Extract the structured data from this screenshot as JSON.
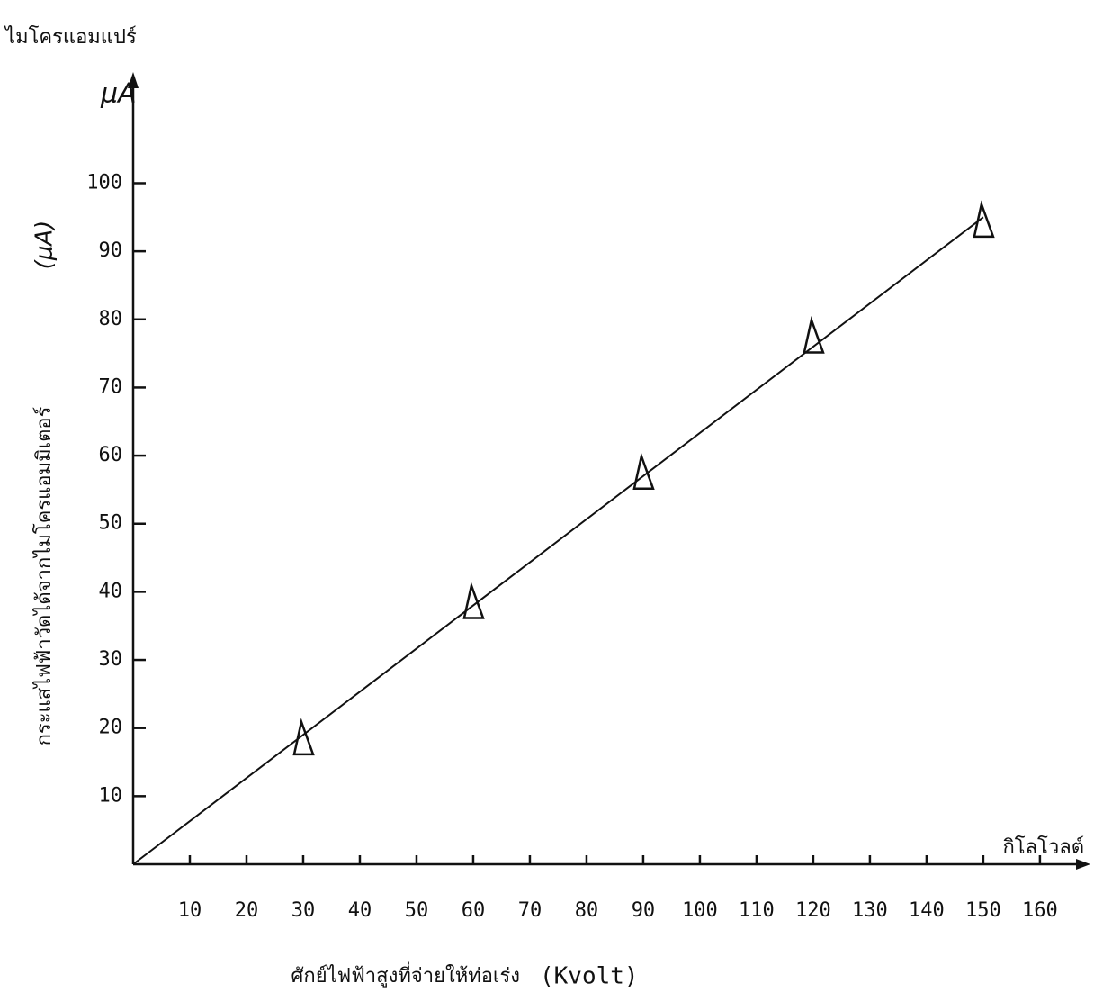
{
  "chart_data": {
    "type": "scatter",
    "title": "ไมโครแอมแปร์",
    "y_unit": "μA",
    "y_label": "กระแสไฟฟ้าวัดได้จากไมโครแอมมิเตอร์",
    "y_label_unit": "(μA)",
    "x_label": "ศักย์ไฟฟ้าสูงที่จ่ายให้ท่อเร่ง",
    "x_label_unit": "(Kvolt)",
    "x_unit": "กิโลโวลต์",
    "x": [
      30,
      60,
      90,
      120,
      150
    ],
    "series": [
      {
        "color": "#111111",
        "marker": "triangle",
        "values": [
          18,
          38,
          57,
          77,
          94
        ]
      }
    ],
    "fit_line": {
      "color": "#111111",
      "x": [
        0,
        150
      ],
      "y": [
        0,
        95
      ]
    },
    "xlim": [
      0,
      167
    ],
    "ylim": [
      0,
      115
    ],
    "xticks": [
      10,
      20,
      30,
      40,
      50,
      60,
      70,
      80,
      90,
      100,
      110,
      120,
      130,
      140,
      150,
      160
    ],
    "yticks": [
      10,
      20,
      30,
      40,
      50,
      60,
      70,
      80,
      90,
      100
    ]
  }
}
